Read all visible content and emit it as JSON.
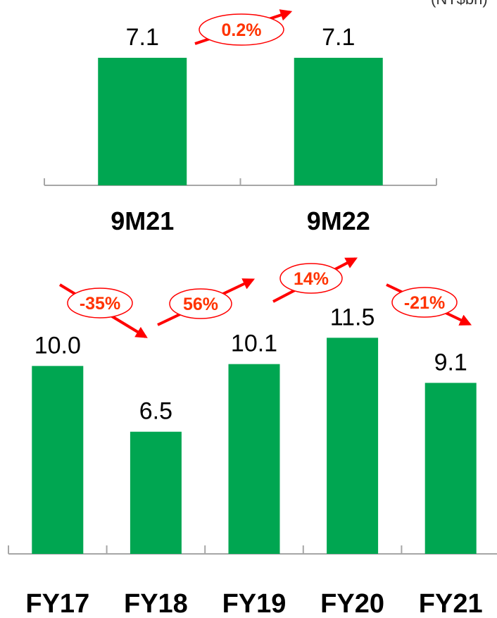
{
  "unit_label": "(NT$bn)",
  "colors": {
    "bar": "#00A651",
    "arrow": "#FF0000",
    "growth_text": "#FF3300",
    "axis": "#A6A6A6",
    "text": "#000000"
  },
  "chart_data": [
    {
      "type": "bar",
      "categories": [
        "9M21",
        "9M22"
      ],
      "values": [
        7.1,
        7.1
      ],
      "value_labels": [
        "7.1",
        "7.1"
      ],
      "growth_labels": [
        {
          "from": "9M21",
          "to": "9M22",
          "label": "0.2%",
          "direction": "up"
        }
      ],
      "ylim": [
        0,
        10.2
      ],
      "grid": false
    },
    {
      "type": "bar",
      "categories": [
        "FY17",
        "FY18",
        "FY19",
        "FY20",
        "FY21"
      ],
      "values": [
        10.0,
        6.5,
        10.1,
        11.5,
        9.1
      ],
      "value_labels": [
        "10.0",
        "6.5",
        "10.1",
        "11.5",
        "9.1"
      ],
      "growth_labels": [
        {
          "from": "FY17",
          "to": "FY18",
          "label": "-35%",
          "direction": "down"
        },
        {
          "from": "FY18",
          "to": "FY19",
          "label": "56%",
          "direction": "up"
        },
        {
          "from": "FY19",
          "to": "FY20",
          "label": "14%",
          "direction": "up"
        },
        {
          "from": "FY20",
          "to": "FY21",
          "label": "-21%",
          "direction": "down"
        }
      ],
      "ylim": [
        0,
        16.5
      ],
      "grid": false
    }
  ]
}
